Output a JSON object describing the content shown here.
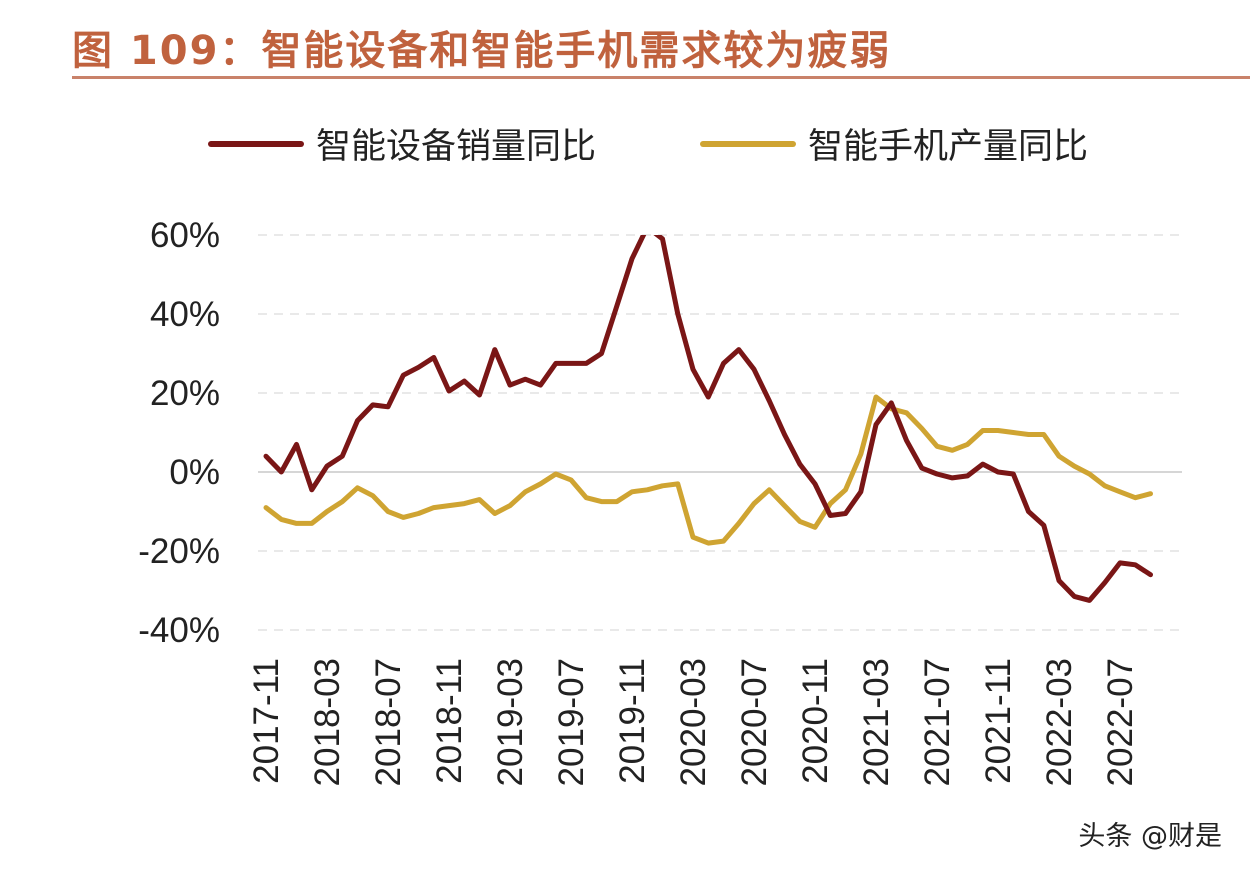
{
  "title": "图 109：智能设备和智能手机需求较为疲弱",
  "watermark": "头条 @财是",
  "chart_data": {
    "type": "line",
    "title": "图 109：智能设备和智能手机需求较为疲弱",
    "xlabel": "",
    "ylabel": "",
    "ylim": [
      -40,
      60
    ],
    "yticks": [
      -40,
      -20,
      0,
      20,
      40,
      60
    ],
    "ytick_labels": [
      "-40%",
      "-20%",
      "0%",
      "20%",
      "40%",
      "60%"
    ],
    "x_start": "2017-11",
    "x_tick_labels": [
      "2017-11",
      "2018-03",
      "2018-07",
      "2018-11",
      "2019-03",
      "2019-07",
      "2019-11",
      "2020-03",
      "2020-07",
      "2020-11",
      "2021-03",
      "2021-07",
      "2021-11",
      "2022-03",
      "2022-07"
    ],
    "x_tick_every": 4,
    "legend_position": "top",
    "grid": "horizontal-dashed",
    "series": [
      {
        "name": "智能设备销量同比",
        "color": "#7a1616",
        "values": [
          4,
          0,
          7,
          -4.5,
          1.5,
          4,
          13,
          17,
          16.5,
          24.5,
          26.5,
          29,
          20.5,
          23,
          19.5,
          31,
          22,
          23.5,
          22,
          27.5,
          27.5,
          27.5,
          30,
          42,
          54,
          62,
          59,
          40,
          26,
          19,
          27.5,
          31,
          26,
          18,
          9.5,
          2,
          -3,
          -11,
          -10.5,
          -5,
          12,
          17.5,
          8,
          1,
          -0.5,
          -1.5,
          -1,
          2,
          0,
          -0.5,
          -10,
          -13.5,
          -27.5,
          -31.5,
          -32.5,
          -28,
          -23,
          -23.5,
          -26
        ]
      },
      {
        "name": "智能手机产量同比",
        "color": "#cfa432",
        "values": [
          -9,
          -12,
          -13,
          -13,
          -10,
          -7.5,
          -4,
          -6,
          -10,
          -11.5,
          -10.5,
          -9,
          -8.5,
          -8,
          -7,
          -10.5,
          -8.5,
          -5,
          -3,
          -0.5,
          -2,
          -6.5,
          -7.5,
          -7.5,
          -5,
          -4.5,
          -3.5,
          -3,
          -16.5,
          -18,
          -17.5,
          -13,
          -8,
          -4.5,
          -8.5,
          -12.5,
          -14,
          -8,
          -4.5,
          4.5,
          19,
          16,
          15,
          11,
          6.5,
          5.5,
          7,
          10.5,
          10.5,
          10,
          9.5,
          9.5,
          4,
          1.5,
          -0.5,
          -3.5,
          -5,
          -6.5,
          -5.5
        ]
      }
    ]
  }
}
